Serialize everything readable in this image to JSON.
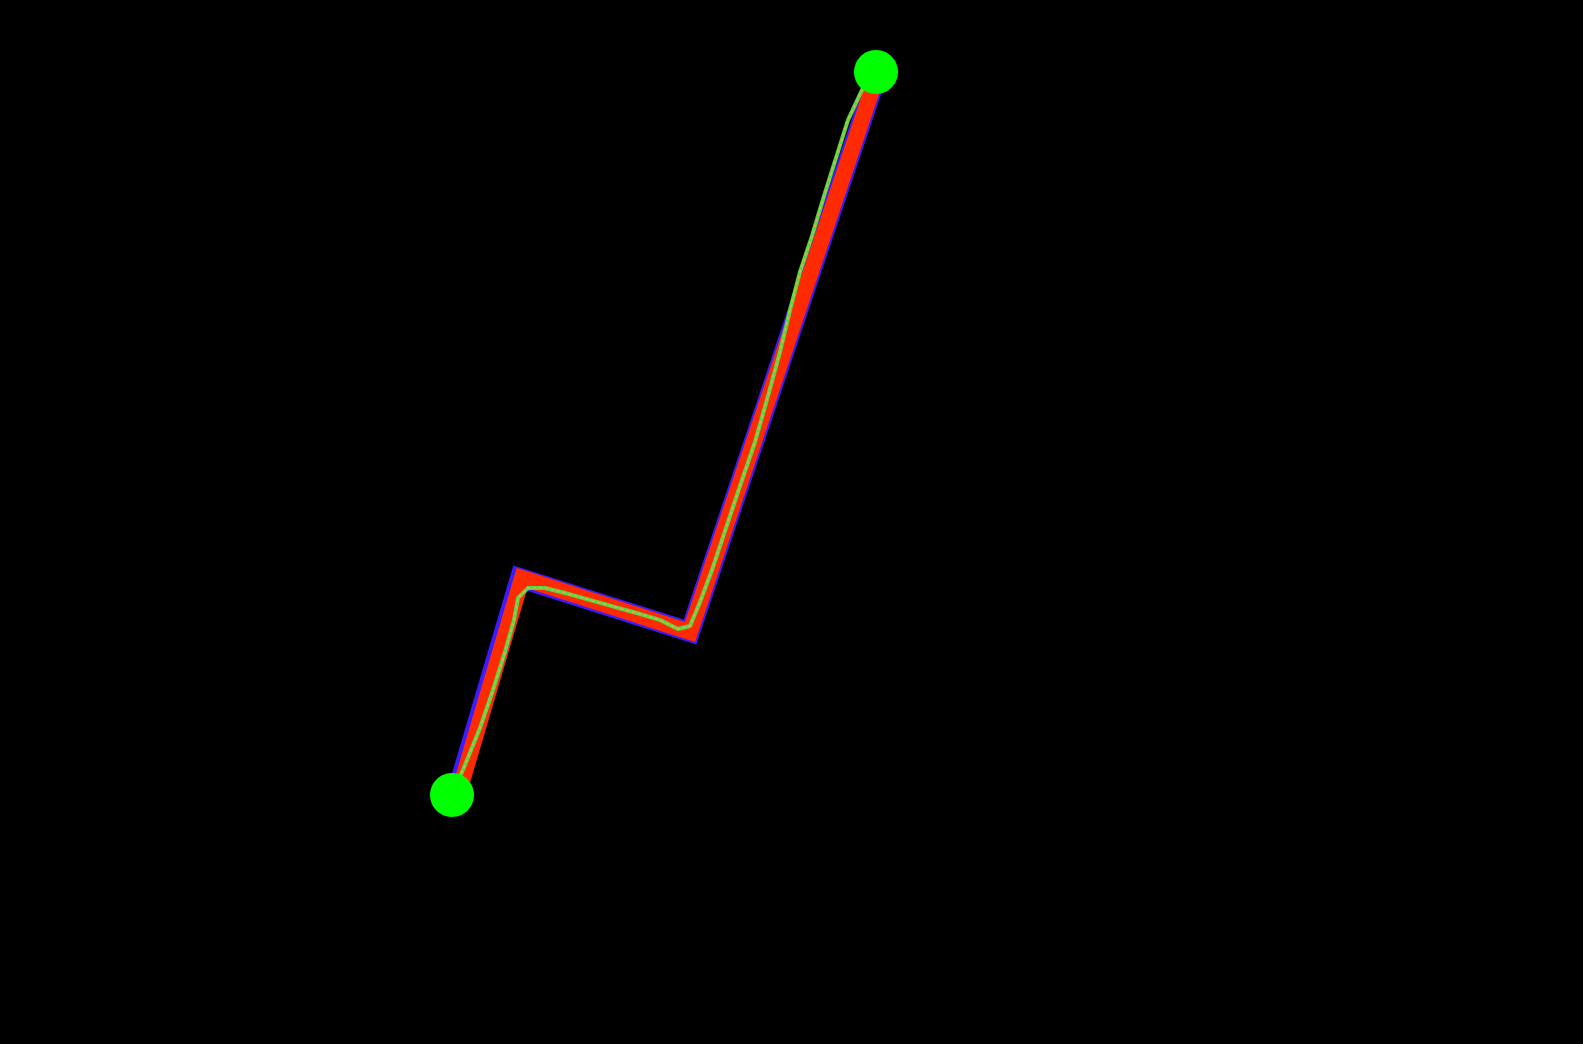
{
  "scene": {
    "background_color": "#000000",
    "path_color": "#ff2a00",
    "path_edge_color": "#3a1cff",
    "trace_color": "#4fdc3a",
    "trace_dash_color": "#c8b25a",
    "endpoint_color": "#00ff00",
    "path_segment_count": 3,
    "endpoint_count": 2
  }
}
